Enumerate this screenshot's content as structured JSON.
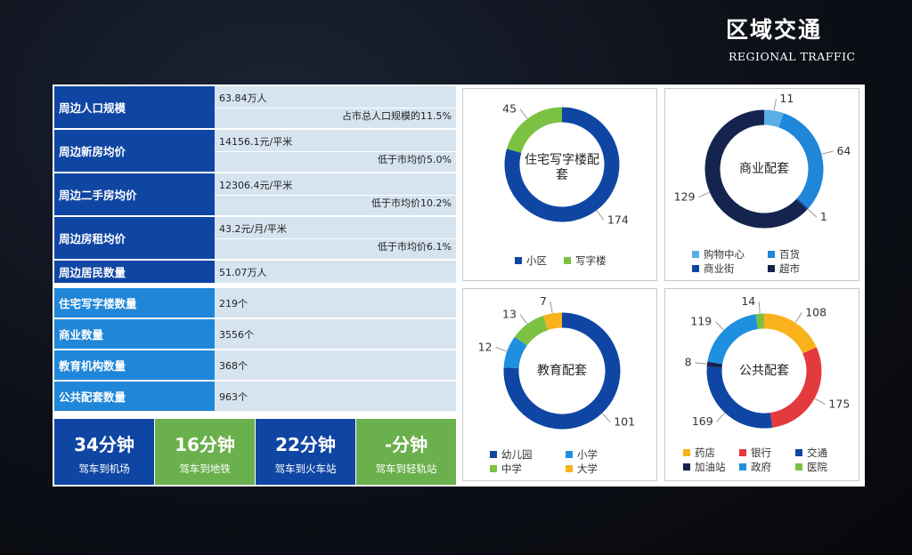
{
  "header": {
    "title": "区域交通",
    "subtitle": "REGIONAL TRAFFIC"
  },
  "table": {
    "rows": [
      {
        "label": "周边人口规模",
        "value": "63.84万人",
        "note": "占市总人口规模的11.5%"
      },
      {
        "label": "周边新房均价",
        "value": "14156.1元/平米",
        "note": "低于市均价5.0%"
      },
      {
        "label": "周边二手房均价",
        "value": "12306.4元/平米",
        "note": "低于市均价10.2%"
      },
      {
        "label": "周边房租均价",
        "value": "43.2元/月/平米",
        "note": "低于市均价6.1%"
      },
      {
        "label": "周边居民数量",
        "value": "51.07万人"
      }
    ],
    "counts": [
      {
        "label": "住宅写字楼数量",
        "value": "219个"
      },
      {
        "label": "商业数量",
        "value": "3556个"
      },
      {
        "label": "教育机构数量",
        "value": "368个"
      },
      {
        "label": "公共配套数量",
        "value": "963个"
      }
    ]
  },
  "times": [
    {
      "time": "34分钟",
      "desc": "驾车到机场",
      "color": "#1046a3"
    },
    {
      "time": "16分钟",
      "desc": "驾车到地铁",
      "color": "#6ab04c"
    },
    {
      "time": "22分钟",
      "desc": "驾车到火车站",
      "color": "#1046a3"
    },
    {
      "time": "-分钟",
      "desc": "驾车到轻轨站",
      "color": "#6ab04c"
    }
  ],
  "chart_data": [
    {
      "type": "pie",
      "title": "住宅写字楼配套",
      "categories": [
        "小区",
        "写字楼"
      ],
      "values": [
        174,
        45
      ],
      "colors": [
        "#1046a3",
        "#7cc242"
      ],
      "legend_position": "bottom"
    },
    {
      "type": "pie",
      "title": "商业配套",
      "categories": [
        "购物中心",
        "百货",
        "商业街",
        "超市"
      ],
      "values": [
        11,
        64,
        1,
        129
      ],
      "colors": [
        "#5aaee6",
        "#1f86d8",
        "#1046a3",
        "#15244e"
      ],
      "legend_position": "bottom"
    },
    {
      "type": "pie",
      "title": "教育配套",
      "categories": [
        "幼儿园",
        "小学",
        "中学",
        "大学"
      ],
      "values": [
        101,
        12,
        13,
        7
      ],
      "colors": [
        "#1046a3",
        "#1f8fe0",
        "#7cc242",
        "#f9b21c"
      ],
      "legend_position": "bottom"
    },
    {
      "type": "pie",
      "title": "公共配套",
      "categories": [
        "药店",
        "银行",
        "交通",
        "加油站",
        "政府",
        "医院"
      ],
      "values": [
        108,
        175,
        169,
        8,
        119,
        14
      ],
      "colors": [
        "#f9b21c",
        "#e33a3d",
        "#1046a3",
        "#15244e",
        "#1f8fe0",
        "#7cc242"
      ],
      "legend_position": "bottom"
    }
  ]
}
